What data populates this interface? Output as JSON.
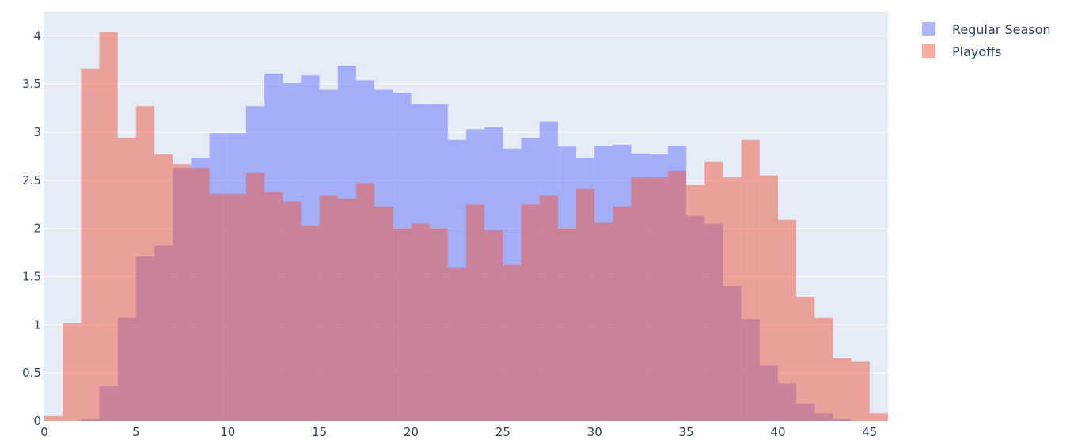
{
  "chart_data": {
    "type": "bar",
    "subtype": "overlaid-histogram",
    "title": "",
    "xlabel": "",
    "ylabel": "",
    "xlim": [
      0,
      46
    ],
    "ylim": [
      0,
      4.25
    ],
    "bin_width": 1,
    "x_ticks": [
      0,
      5,
      10,
      15,
      20,
      25,
      30,
      35,
      40,
      45
    ],
    "y_ticks": [
      0,
      0.5,
      1,
      1.5,
      2,
      2.5,
      3,
      3.5,
      4
    ],
    "x_tick_labels": [
      "0",
      "5",
      "10",
      "15",
      "20",
      "25",
      "30",
      "35",
      "40",
      "45"
    ],
    "y_tick_labels": [
      "0",
      "0.5",
      "1",
      "1.5",
      "2",
      "2.5",
      "3",
      "3.5",
      "4"
    ],
    "grid": true,
    "legend_position": "top-right",
    "plot_background": "#e5ecf6",
    "series": [
      {
        "name": "Regular Season",
        "color": "#636efa",
        "opacity": 0.5,
        "bin_starts": [
          0,
          1,
          2,
          3,
          4,
          5,
          6,
          7,
          8,
          9,
          10,
          11,
          12,
          13,
          14,
          15,
          16,
          17,
          18,
          19,
          20,
          21,
          22,
          23,
          24,
          25,
          26,
          27,
          28,
          29,
          30,
          31,
          32,
          33,
          34,
          35,
          36,
          37,
          38,
          39,
          40,
          41,
          42,
          43,
          44,
          45
        ],
        "values": [
          0,
          0,
          0.02,
          0.36,
          1.07,
          1.71,
          1.82,
          2.63,
          2.73,
          2.99,
          2.99,
          3.27,
          3.61,
          3.51,
          3.59,
          3.44,
          3.69,
          3.54,
          3.44,
          3.41,
          3.29,
          3.29,
          2.92,
          3.03,
          3.05,
          2.83,
          2.94,
          3.11,
          2.85,
          2.73,
          2.86,
          2.87,
          2.78,
          2.77,
          2.86,
          2.13,
          2.05,
          1.4,
          1.06,
          0.58,
          0.39,
          0.18,
          0.08,
          0.02,
          0,
          0
        ]
      },
      {
        "name": "Playoffs",
        "color": "#ef553b",
        "opacity": 0.5,
        "bin_starts": [
          0,
          1,
          2,
          3,
          4,
          5,
          6,
          7,
          8,
          9,
          10,
          11,
          12,
          13,
          14,
          15,
          16,
          17,
          18,
          19,
          20,
          21,
          22,
          23,
          24,
          25,
          26,
          27,
          28,
          29,
          30,
          31,
          32,
          33,
          34,
          35,
          36,
          37,
          38,
          39,
          40,
          41,
          42,
          43,
          44,
          45
        ],
        "values": [
          0.05,
          1.02,
          3.66,
          4.04,
          2.94,
          3.27,
          2.77,
          2.67,
          2.63,
          2.36,
          2.36,
          2.58,
          2.38,
          2.28,
          2.03,
          2.34,
          2.31,
          2.47,
          2.23,
          2.0,
          2.05,
          2.0,
          1.59,
          2.25,
          1.98,
          1.62,
          2.25,
          2.34,
          2.0,
          2.41,
          2.06,
          2.23,
          2.53,
          2.53,
          2.6,
          2.45,
          2.69,
          2.53,
          2.92,
          2.55,
          2.09,
          1.29,
          1.07,
          0.65,
          0.62,
          0.08
        ]
      }
    ]
  }
}
